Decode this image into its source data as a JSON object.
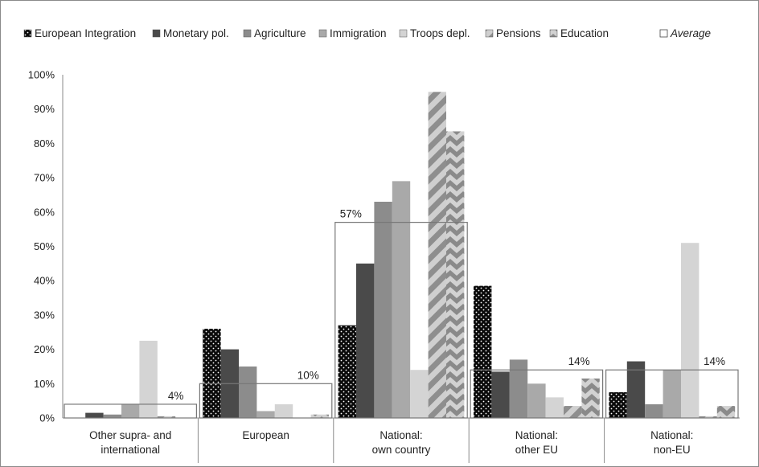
{
  "chart_data": {
    "type": "bar",
    "categories": [
      [
        "Other supra- and",
        "international"
      ],
      [
        "European"
      ],
      [
        "National:",
        "own country"
      ],
      [
        "National:",
        "other EU"
      ],
      [
        "National:",
        "non-EU"
      ]
    ],
    "series": [
      {
        "name": "European Integration",
        "values": [
          0,
          26,
          27,
          38.5,
          7.5
        ],
        "color": "#0a0a0a",
        "pattern": "dots"
      },
      {
        "name": "Monetary pol.",
        "values": [
          1.5,
          20,
          45,
          13.5,
          16.5
        ],
        "color": "#4a4a4a",
        "pattern": "solid"
      },
      {
        "name": "Agriculture",
        "values": [
          1,
          15,
          63,
          17,
          4
        ],
        "color": "#8c8c8c",
        "pattern": "solid"
      },
      {
        "name": "Immigration",
        "values": [
          4,
          2,
          69,
          10,
          14
        ],
        "color": "#a9a9a9",
        "pattern": "solid"
      },
      {
        "name": "Troops depl.",
        "values": [
          22.5,
          4,
          14,
          6,
          51
        ],
        "color": "#d4d4d4",
        "pattern": "solid"
      },
      {
        "name": "Pensions",
        "values": [
          0.5,
          0,
          95,
          3.5,
          0.5
        ],
        "color": "#b5b5b5",
        "pattern": "diag"
      },
      {
        "name": "Education",
        "values": [
          0,
          1,
          83.5,
          11.5,
          3.5
        ],
        "color": "#999999",
        "pattern": "chevron"
      }
    ],
    "average": {
      "name": "Average",
      "values": [
        4,
        10,
        57,
        14,
        14
      ],
      "labels": [
        "4%",
        "10%",
        "57%",
        "14%",
        "14%"
      ]
    },
    "y_ticks": [
      "0%",
      "10%",
      "20%",
      "30%",
      "40%",
      "50%",
      "60%",
      "70%",
      "80%",
      "90%",
      "100%"
    ],
    "ylim": [
      0,
      100
    ],
    "grid": false,
    "legend_position": "top",
    "title": "",
    "xlabel": "",
    "ylabel": ""
  }
}
